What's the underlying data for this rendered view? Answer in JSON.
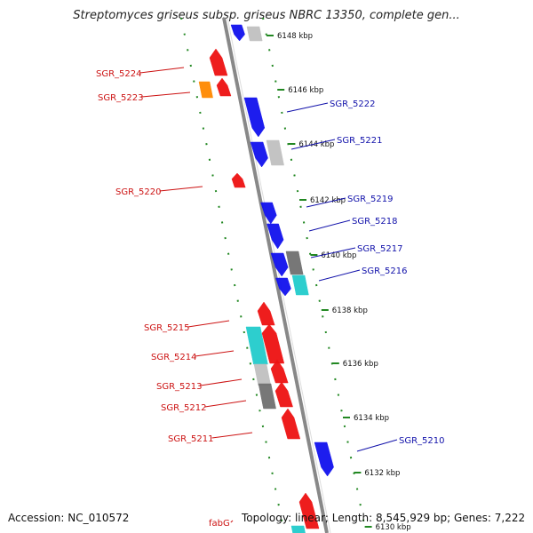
{
  "title": "Streptomyces griseus subsp. griseus NBRC 13350, complete gen...",
  "accession": "Accession: NC_010572",
  "topology": "Topology: linear; Length: 8,545,929 bp; Genes: 7,222",
  "colors": {
    "forward": "#ee1111",
    "reverse": "#1111ee",
    "cyan": "#22cccc",
    "orange": "#ff8800",
    "light_gray": "#c0c0c0",
    "dark_gray": "#707070",
    "ruler": "#228822",
    "backbone": "#888888",
    "left_label": "#cc1111",
    "right_label": "#1111aa"
  },
  "ruler_ticks": [
    "6148 kbp",
    "6146 kbp",
    "6144 kbp",
    "6142 kbp",
    "6140 kbp",
    "6138 kbp",
    "6136 kbp",
    "6134 kbp",
    "6132 kbp",
    "6130 kbp"
  ],
  "left_labels": [
    "SGR_5224",
    "SGR_5223",
    "SGR_5220",
    "SGR_5215",
    "SGR_5214",
    "SGR_5213",
    "SGR_5212",
    "SGR_5211",
    "fabG"
  ],
  "right_labels": [
    "SGR_5222",
    "SGR_5221",
    "SGR_5219",
    "SGR_5218",
    "SGR_5217",
    "SGR_5216",
    "SGR_5210"
  ]
}
